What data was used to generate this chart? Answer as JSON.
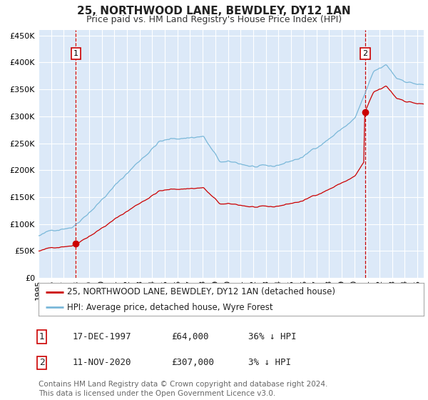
{
  "title": "25, NORTHWOOD LANE, BEWDLEY, DY12 1AN",
  "subtitle": "Price paid vs. HM Land Registry's House Price Index (HPI)",
  "ylabel_ticks": [
    "£0",
    "£50K",
    "£100K",
    "£150K",
    "£200K",
    "£250K",
    "£300K",
    "£350K",
    "£400K",
    "£450K"
  ],
  "ytick_values": [
    0,
    50000,
    100000,
    150000,
    200000,
    250000,
    300000,
    350000,
    400000,
    450000
  ],
  "ylim": [
    0,
    460000
  ],
  "xlim_start": 1995.0,
  "xlim_end": 2025.5,
  "background_color": "#dce9f8",
  "grid_color": "#ffffff",
  "hpi_color": "#7ab8d9",
  "price_color": "#cc0000",
  "purchase1_date": 1997.96,
  "purchase1_price": 64000,
  "purchase2_date": 2020.86,
  "purchase2_price": 307000,
  "legend_entry1": "25, NORTHWOOD LANE, BEWDLEY, DY12 1AN (detached house)",
  "legend_entry2": "HPI: Average price, detached house, Wyre Forest",
  "table_row1_num": "1",
  "table_row1_date": "17-DEC-1997",
  "table_row1_price": "£64,000",
  "table_row1_hpi": "36% ↓ HPI",
  "table_row2_num": "2",
  "table_row2_date": "11-NOV-2020",
  "table_row2_price": "£307,000",
  "table_row2_hpi": "3% ↓ HPI",
  "footer": "Contains HM Land Registry data © Crown copyright and database right 2024.\nThis data is licensed under the Open Government Licence v3.0.",
  "title_fontsize": 11,
  "subtitle_fontsize": 9,
  "tick_fontsize": 8,
  "legend_fontsize": 8.5,
  "table_fontsize": 9,
  "footer_fontsize": 7.5
}
